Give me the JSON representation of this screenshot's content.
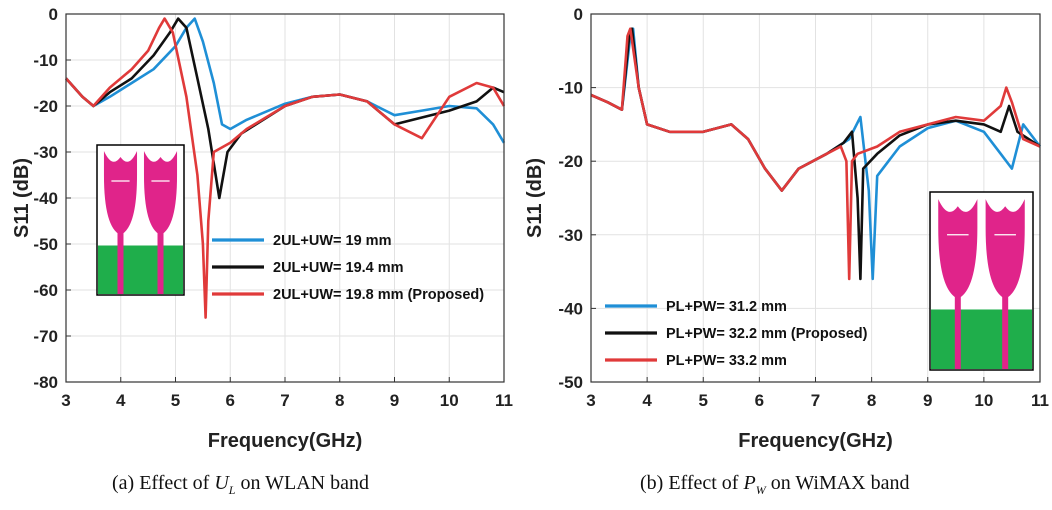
{
  "chart_data": [
    {
      "type": "line",
      "xlabel": "Frequency(GHz)",
      "ylabel": "S11 (dB)",
      "xlim": [
        3,
        11
      ],
      "ylim": [
        -80,
        0
      ],
      "xticks": [
        "3",
        "4",
        "5",
        "6",
        "7",
        "8",
        "9",
        "10",
        "11"
      ],
      "yticks": [
        "0",
        "-10",
        "-20",
        "-30",
        "-40",
        "-50",
        "-60",
        "-70",
        "-80"
      ],
      "grid": true,
      "legend_position": "lower-right",
      "caption": {
        "prefix": "(a) Effect of ",
        "var": "U",
        "sub": "L",
        "suffix": " on WLAN band"
      },
      "series": [
        {
          "name": "2UL+UW= 19 mm",
          "color": "#1f8fd6",
          "x": [
            3.0,
            3.3,
            3.5,
            3.8,
            4.2,
            4.6,
            5.0,
            5.2,
            5.35,
            5.5,
            5.7,
            5.85,
            6.0,
            6.3,
            7.0,
            7.5,
            8.0,
            8.5,
            9.0,
            9.5,
            10.0,
            10.5,
            10.8,
            11.0
          ],
          "y": [
            -14,
            -18,
            -20,
            -18,
            -15,
            -12,
            -7,
            -3,
            -1,
            -6,
            -15,
            -24,
            -25,
            -23,
            -19.5,
            -18,
            -17.5,
            -19,
            -22,
            -21,
            -20,
            -20.5,
            -24,
            -28
          ]
        },
        {
          "name": "2UL+UW= 19.4 mm",
          "color": "#111111",
          "x": [
            3.0,
            3.3,
            3.5,
            3.8,
            4.2,
            4.6,
            4.9,
            5.05,
            5.2,
            5.4,
            5.6,
            5.8,
            5.95,
            6.2,
            7.0,
            7.5,
            8.0,
            8.5,
            9.0,
            9.5,
            10.0,
            10.5,
            10.8,
            11.0
          ],
          "y": [
            -14,
            -18,
            -20,
            -17,
            -14,
            -9,
            -4,
            -1,
            -3,
            -14,
            -25,
            -40,
            -30,
            -26,
            -20,
            -18,
            -17.5,
            -19,
            -24,
            -22.5,
            -21,
            -19,
            -16,
            -17
          ]
        },
        {
          "name": "2UL+UW= 19.8 mm (Proposed)",
          "color": "#e03a3a",
          "x": [
            3.0,
            3.3,
            3.5,
            3.8,
            4.2,
            4.5,
            4.7,
            4.8,
            4.95,
            5.2,
            5.4,
            5.5,
            5.55,
            5.6,
            5.7,
            6.0,
            6.3,
            7.0,
            7.5,
            8.0,
            8.5,
            9.0,
            9.5,
            10.0,
            10.5,
            10.8,
            11.0
          ],
          "y": [
            -14,
            -18,
            -20,
            -16,
            -12,
            -8,
            -3,
            -1,
            -4,
            -18,
            -35,
            -50,
            -66,
            -45,
            -30,
            -28,
            -25,
            -20,
            -18,
            -17.5,
            -19,
            -24,
            -27,
            -18,
            -15,
            -16,
            -20
          ]
        }
      ]
    },
    {
      "type": "line",
      "xlabel": "Frequency(GHz)",
      "ylabel": "S11 (dB)",
      "xlim": [
        3,
        11
      ],
      "ylim": [
        -50,
        0
      ],
      "xticks": [
        "3",
        "4",
        "5",
        "6",
        "7",
        "8",
        "9",
        "10",
        "11"
      ],
      "yticks": [
        "0",
        "-10",
        "-20",
        "-30",
        "-40",
        "-50"
      ],
      "grid": true,
      "legend_position": "lower-left",
      "caption": {
        "prefix": "(b) Effect of ",
        "var": "P",
        "sub": "W",
        "suffix": " on WiMAX band"
      },
      "series": [
        {
          "name": "PL+PW= 31.2 mm",
          "color": "#1f8fd6",
          "x": [
            3.0,
            3.3,
            3.55,
            3.7,
            3.75,
            3.85,
            4.0,
            4.4,
            5.0,
            5.5,
            5.8,
            6.1,
            6.4,
            6.7,
            7.2,
            7.6,
            7.8,
            7.95,
            8.02,
            8.1,
            8.5,
            9.0,
            9.5,
            10.0,
            10.3,
            10.5,
            10.7,
            11.0
          ],
          "y": [
            -11,
            -12,
            -13,
            -3,
            -2,
            -10,
            -15,
            -16,
            -16,
            -15,
            -17,
            -21,
            -24,
            -21,
            -19,
            -17,
            -14,
            -24,
            -36,
            -22,
            -18,
            -15.5,
            -14.5,
            -16,
            -19,
            -21,
            -15,
            -18
          ]
        },
        {
          "name": "PL+PW= 32.2 mm (Proposed)",
          "color": "#111111",
          "x": [
            3.0,
            3.3,
            3.55,
            3.68,
            3.73,
            3.85,
            4.0,
            4.4,
            5.0,
            5.5,
            5.8,
            6.1,
            6.4,
            6.7,
            7.2,
            7.5,
            7.65,
            7.75,
            7.8,
            7.85,
            8.1,
            8.5,
            9.0,
            9.5,
            10.0,
            10.3,
            10.45,
            10.6,
            11.0
          ],
          "y": [
            -11,
            -12,
            -13,
            -3,
            -2,
            -10,
            -15,
            -16,
            -16,
            -15,
            -17,
            -21,
            -24,
            -21,
            -19,
            -17.5,
            -16,
            -25,
            -36,
            -21,
            -19,
            -16.5,
            -15,
            -14.5,
            -15,
            -16,
            -12.5,
            -16,
            -18
          ]
        },
        {
          "name": "PL+PW= 33.2 mm",
          "color": "#e03a3a",
          "x": [
            3.0,
            3.3,
            3.55,
            3.65,
            3.7,
            3.85,
            4.0,
            4.4,
            5.0,
            5.5,
            5.8,
            6.1,
            6.4,
            6.7,
            7.2,
            7.45,
            7.55,
            7.6,
            7.65,
            7.75,
            8.1,
            8.5,
            9.0,
            9.5,
            10.0,
            10.3,
            10.4,
            10.5,
            10.7,
            11.0
          ],
          "y": [
            -11,
            -12,
            -13,
            -3,
            -2,
            -10,
            -15,
            -16,
            -16,
            -15,
            -17,
            -21,
            -24,
            -21,
            -19,
            -18,
            -20,
            -36,
            -20,
            -19,
            -18,
            -16,
            -15,
            -14,
            -14.5,
            -12.5,
            -10,
            -12,
            -17,
            -18
          ]
        }
      ]
    }
  ]
}
